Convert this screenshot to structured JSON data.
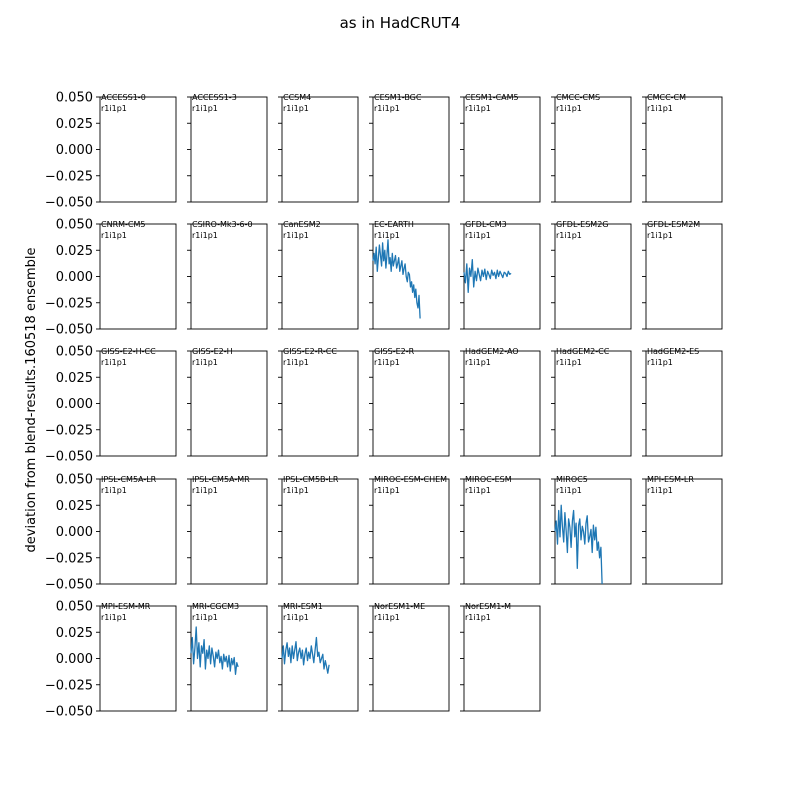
{
  "figure": {
    "title": "as in HadCRUT4",
    "ylabel": "deviation from blend-results.160518 ensemble"
  },
  "chart_data": {
    "type": "line",
    "title": "as in HadCRUT4",
    "ylabel": "deviation from blend-results.160518 ensemble",
    "ylim": [
      -0.05,
      0.05
    ],
    "yticks": [
      "0.050",
      "0.025",
      "0.000",
      "−0.025",
      "−0.050"
    ],
    "ytick_values": [
      0.05,
      0.025,
      0,
      -0.025,
      -0.05
    ],
    "grid": false,
    "series_color": "#1f77b4",
    "panels": [
      {
        "model": "ACCESS1-0",
        "run": "r1i1p1"
      },
      {
        "model": "ACCESS1-3",
        "run": "r1i1p1"
      },
      {
        "model": "CCSM4",
        "run": "r1i1p1"
      },
      {
        "model": "CESM1-BGC",
        "run": "r1i1p1"
      },
      {
        "model": "CESM1-CAM5",
        "run": "r1i1p1"
      },
      {
        "model": "CMCC-CMS",
        "run": "r1i1p1"
      },
      {
        "model": "CMCC-CM",
        "run": "r1i1p1"
      },
      {
        "model": "CNRM-CM5",
        "run": "r1i1p1"
      },
      {
        "model": "CSIRO-Mk3-6-0",
        "run": "r1i1p1"
      },
      {
        "model": "CanESM2",
        "run": "r1i1p1"
      },
      {
        "model": "EC-EARTH",
        "run": "r1i1p1",
        "values": [
          0.015,
          0.022,
          0.012,
          0.028,
          0.005,
          0.018,
          0.03,
          0.02,
          0.01,
          0.032,
          0.015,
          0.025,
          0.008,
          0.02,
          0.035,
          0.012,
          0.018,
          0.005,
          0.022,
          0.01,
          0.015,
          0.02,
          0.008,
          0.012,
          0.018,
          0.005,
          0.01,
          0.015,
          0.002,
          0.008,
          0.012,
          0.0,
          -0.005,
          0.004,
          0.002,
          -0.01,
          -0.005,
          -0.015,
          -0.008,
          -0.02,
          -0.012,
          -0.025,
          -0.03,
          -0.018,
          -0.04
        ]
      },
      {
        "model": "GFDL-CM3",
        "run": "r1i1p1",
        "values": [
          0.004,
          -0.006,
          0.012,
          -0.015,
          0.008,
          0.0,
          0.016,
          -0.01,
          0.005,
          -0.004,
          0.008,
          0.002,
          -0.004,
          0.006,
          0.0,
          0.007,
          -0.003,
          0.005,
          0.002,
          -0.002,
          0.006,
          0.001,
          0.004,
          -0.002,
          0.006,
          0.0,
          0.005,
          0.002,
          -0.001,
          0.004,
          0.003,
          0.0,
          0.005,
          0.002,
          0.003
        ]
      },
      {
        "model": "GFDL-ESM2G",
        "run": "r1i1p1"
      },
      {
        "model": "GFDL-ESM2M",
        "run": "r1i1p1"
      },
      {
        "model": "GISS-E2-H-CC",
        "run": "r1i1p1"
      },
      {
        "model": "GISS-E2-H",
        "run": "r1i1p1"
      },
      {
        "model": "GISS-E2-R-CC",
        "run": "r1i1p1"
      },
      {
        "model": "GISS-E2-R",
        "run": "r1i1p1"
      },
      {
        "model": "HadGEM2-AO",
        "run": "r1i1p1"
      },
      {
        "model": "HadGEM2-CC",
        "run": "r1i1p1"
      },
      {
        "model": "HadGEM2-ES",
        "run": "r1i1p1"
      },
      {
        "model": "IPSL-CM5A-LR",
        "run": "r1i1p1"
      },
      {
        "model": "IPSL-CM5A-MR",
        "run": "r1i1p1"
      },
      {
        "model": "IPSL-CM5B-LR",
        "run": "r1i1p1"
      },
      {
        "model": "MIROC-ESM-CHEM",
        "run": "r1i1p1"
      },
      {
        "model": "MIROC-ESM",
        "run": "r1i1p1"
      },
      {
        "model": "MIROC5",
        "run": "r1i1p1",
        "values": [
          0.0,
          0.01,
          -0.012,
          0.02,
          -0.005,
          0.025,
          0.005,
          -0.01,
          0.018,
          0.0,
          -0.02,
          0.012,
          0.004,
          -0.015,
          0.01,
          0.02,
          -0.005,
          0.008,
          -0.035,
          0.006,
          0.012,
          -0.008,
          0.005,
          0.0,
          -0.012,
          0.008,
          0.015,
          -0.01,
          -0.005,
          0.002,
          -0.02,
          0.006,
          -0.008,
          0.004,
          -0.018,
          -0.01,
          -0.025,
          -0.015,
          -0.05
        ]
      },
      {
        "model": "MPI-ESM-LR",
        "run": "r1i1p1"
      },
      {
        "model": "MPI-ESM-MR",
        "run": "r1i1p1"
      },
      {
        "model": "MRI-CGCM3",
        "run": "r1i1p1",
        "values": [
          0.005,
          0.02,
          -0.005,
          0.01,
          0.03,
          0.0,
          0.015,
          -0.008,
          0.012,
          0.005,
          0.018,
          -0.01,
          0.008,
          0.0,
          0.012,
          -0.005,
          0.01,
          0.002,
          -0.008,
          0.006,
          0.0,
          0.008,
          -0.004,
          0.002,
          -0.01,
          0.004,
          -0.003,
          0.002,
          -0.008,
          0.003,
          -0.012,
          0.0,
          -0.006,
          0.001,
          -0.015,
          -0.004,
          -0.008
        ]
      },
      {
        "model": "MRI-ESM1",
        "run": "r1i1p1",
        "values": [
          0.0,
          0.012,
          -0.005,
          0.008,
          0.015,
          0.002,
          0.01,
          -0.004,
          0.012,
          0.0,
          0.008,
          0.016,
          -0.002,
          0.006,
          0.01,
          0.0,
          0.008,
          -0.006,
          0.004,
          0.01,
          -0.002,
          0.006,
          0.0,
          0.012,
          0.004,
          -0.004,
          0.008,
          0.02,
          0.002,
          0.006,
          -0.004,
          0.0,
          0.004,
          -0.01,
          -0.002,
          -0.008,
          -0.014,
          -0.006
        ]
      },
      {
        "model": "NorESM1-ME",
        "run": "r1i1p1"
      },
      {
        "model": "NorESM1-M",
        "run": "r1i1p1"
      }
    ]
  }
}
